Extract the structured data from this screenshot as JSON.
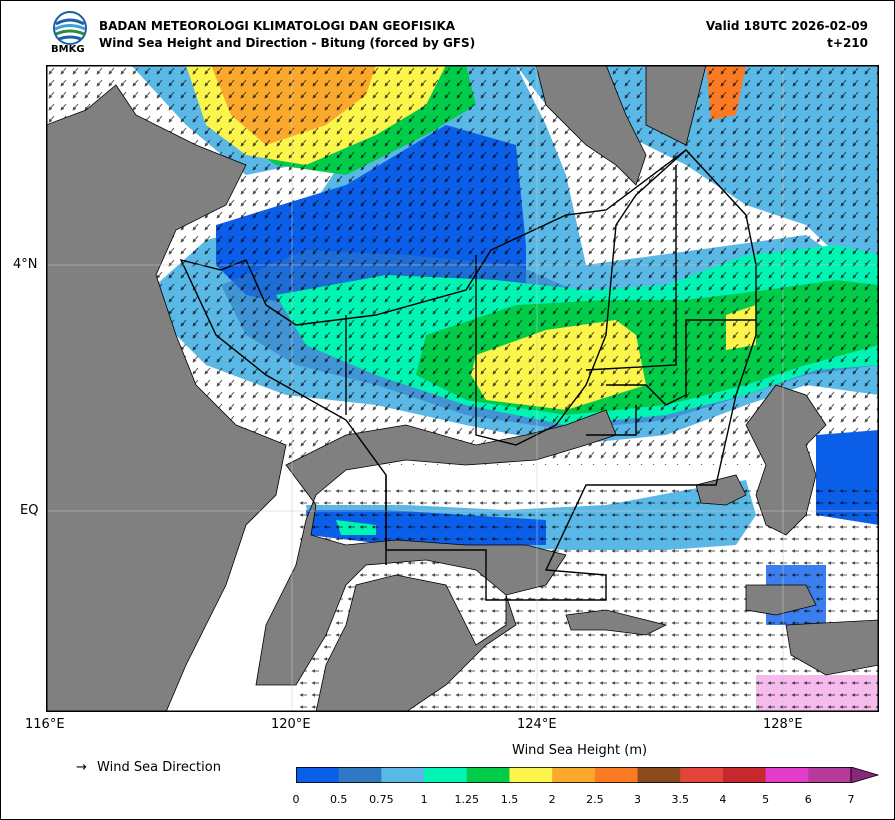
{
  "header": {
    "agency": "BADAN METEOROLOGI KLIMATOLOGI DAN GEOFISIKA",
    "title": "Wind Sea Height and Direction - Bitung (forced by GFS)",
    "valid": "Valid 18UTC 2026-02-09",
    "lead": "t+210",
    "logo_text": "BMKG"
  },
  "map": {
    "lat_labels": [
      "4°N",
      "EQ"
    ],
    "lon_labels": [
      "116°E",
      "120°E",
      "124°E",
      "128°E"
    ],
    "land_color": "#808080",
    "sea_color": "#ffffff"
  },
  "legend": {
    "direction_symbol": "→",
    "direction_label": "Wind Sea Direction",
    "colorbar_title": "Wind Sea Height (m)",
    "ticks": [
      "0",
      "0.5",
      "0.75",
      "1",
      "1.25",
      "1.5",
      "2",
      "2.5",
      "3",
      "3.5",
      "4",
      "5",
      "6",
      "7"
    ],
    "colors": [
      "#0b5ee8",
      "#2f78c4",
      "#5ab8e6",
      "#00f5b4",
      "#00cc4a",
      "#fbf54c",
      "#fba92d",
      "#fb7a24",
      "#8b4a1c",
      "#e2443a",
      "#c6282e",
      "#e33ccb",
      "#b7399c",
      "#86287b"
    ]
  }
}
